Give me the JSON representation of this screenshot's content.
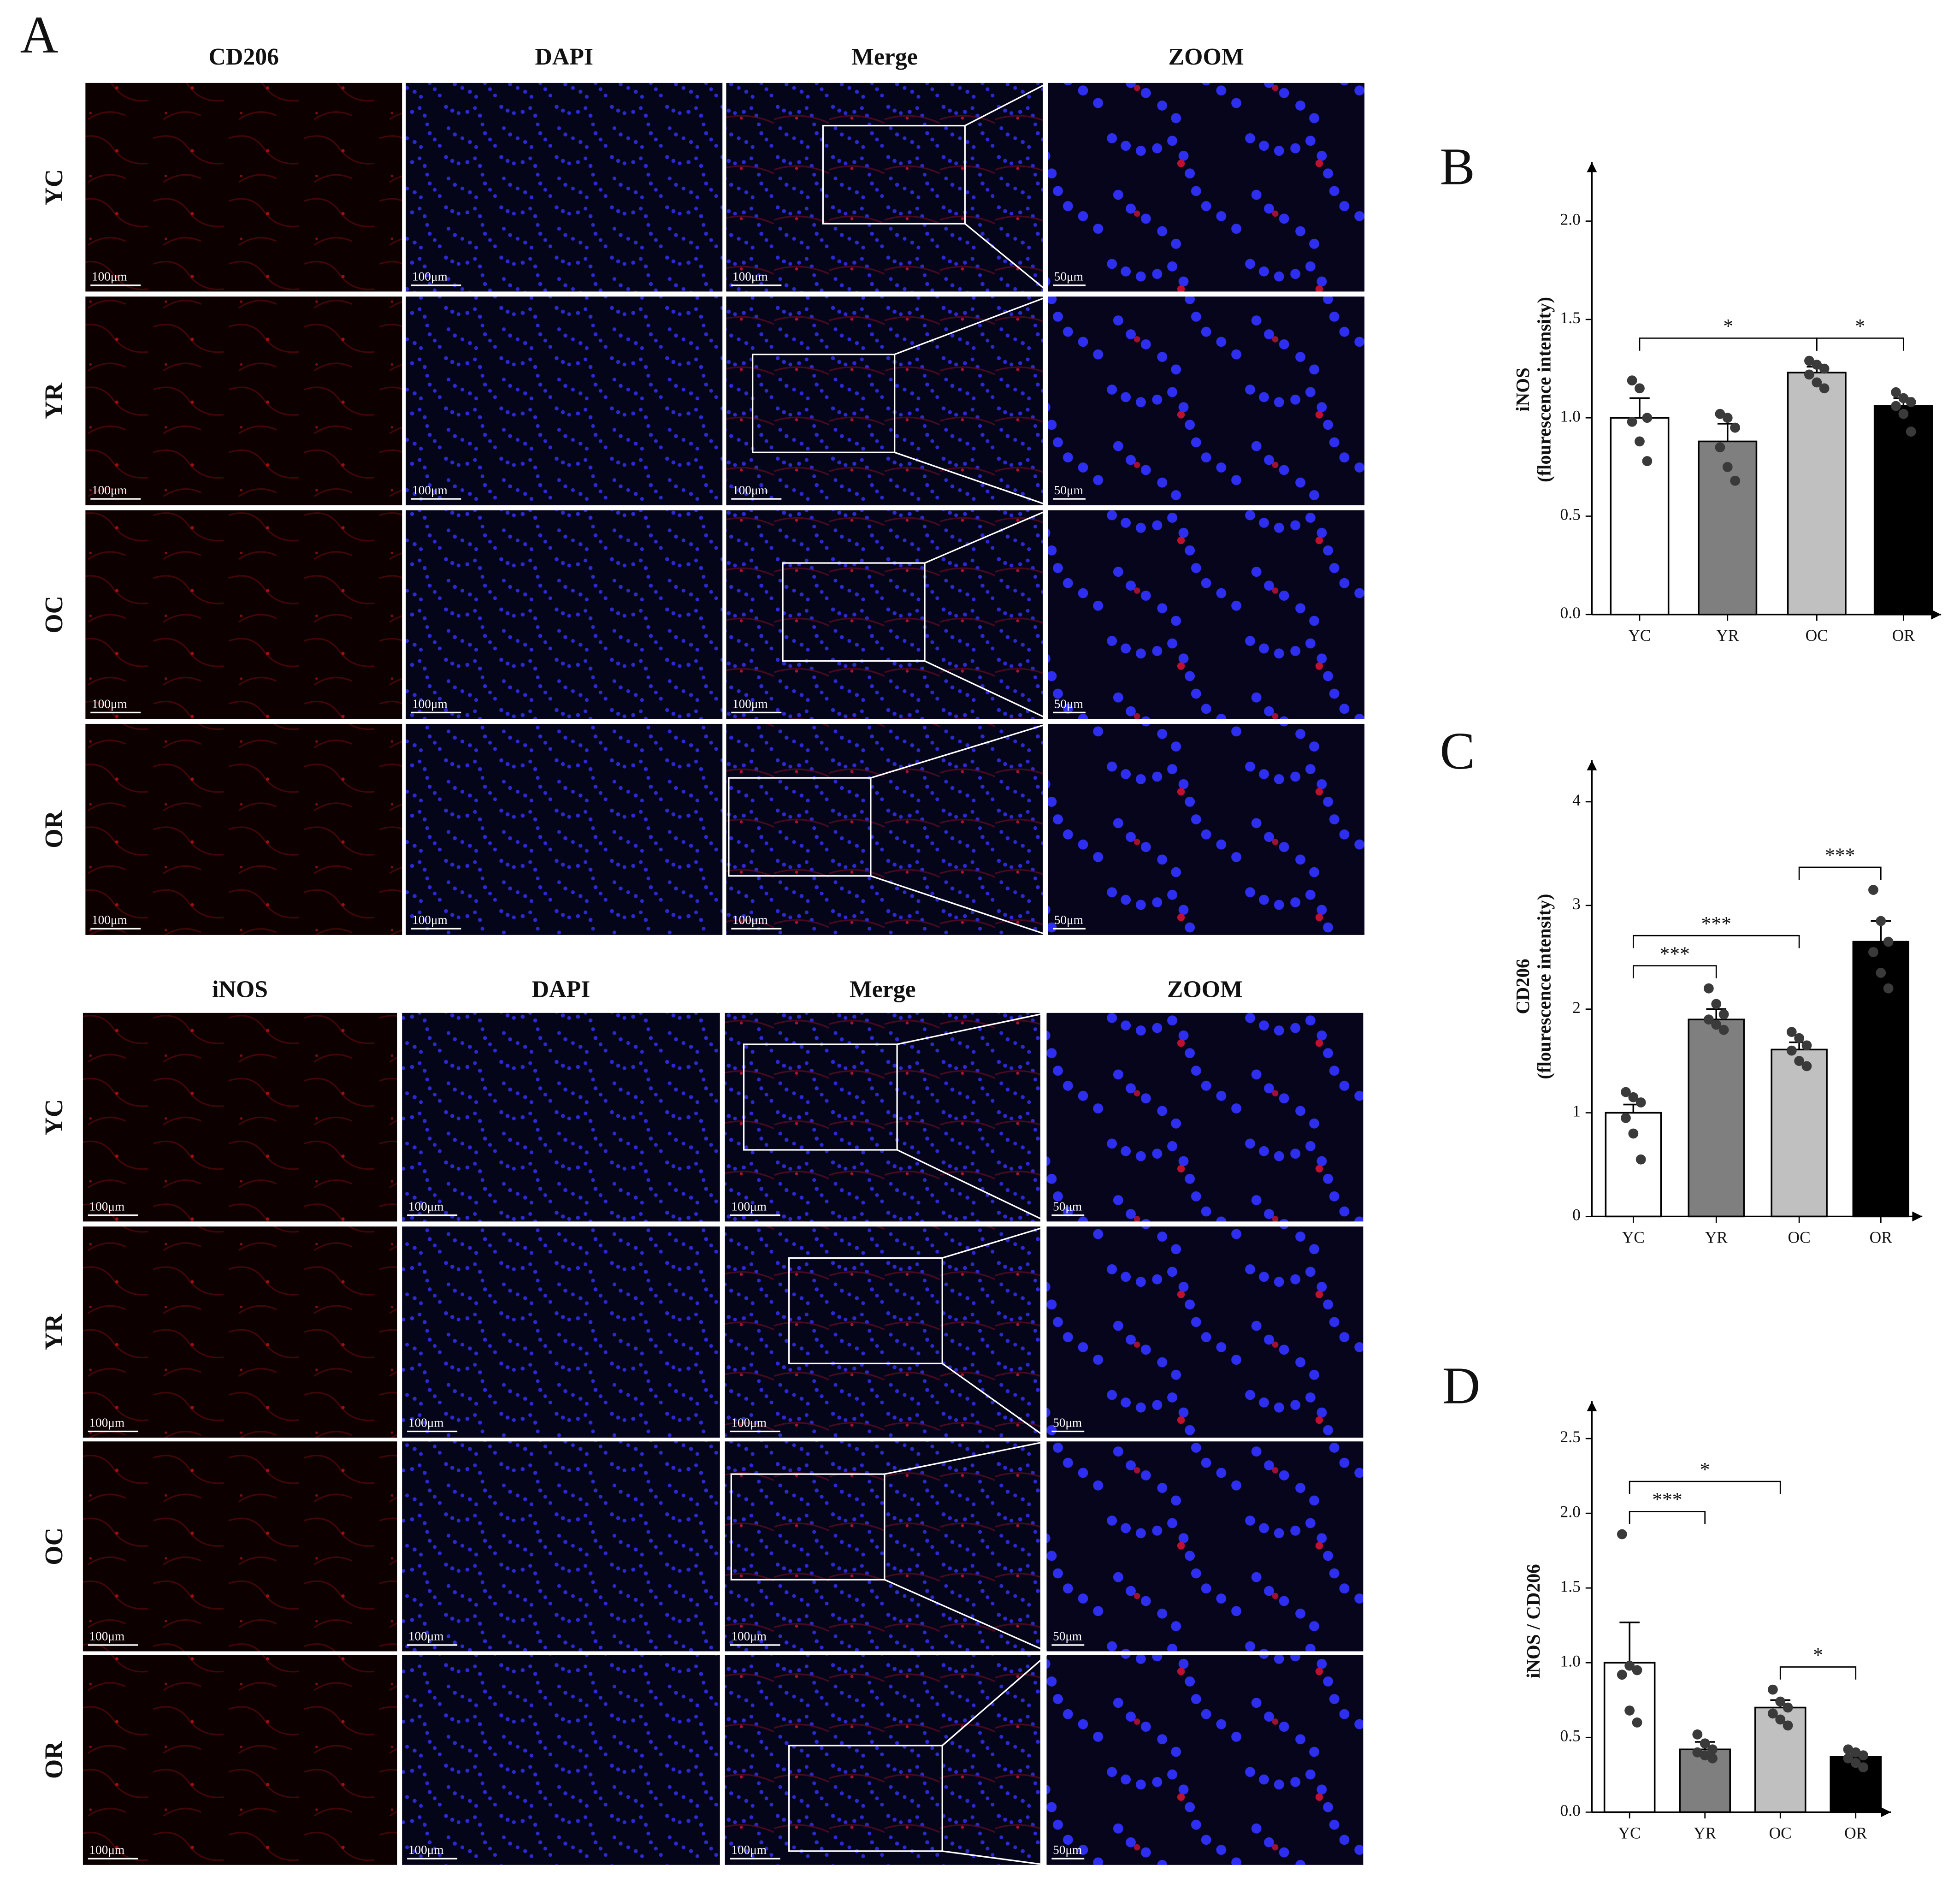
{
  "panel_a": {
    "label": "A",
    "blocks": [
      {
        "columns": [
          "CD206",
          "DAPI",
          "Merge",
          "ZOOM"
        ],
        "rows": [
          "YC",
          "YR",
          "OC",
          "OR"
        ],
        "scale_bars": [
          "100μm",
          "100μm",
          "100μm",
          "50μm"
        ]
      },
      {
        "columns": [
          "iNOS",
          "DAPI",
          "Merge",
          "ZOOM"
        ],
        "rows": [
          "YC",
          "YR",
          "OC",
          "OR"
        ],
        "scale_bars": [
          "100μm",
          "100μm",
          "100μm",
          "50μm"
        ]
      }
    ]
  },
  "chart_data": [
    {
      "type": "bar",
      "panel_label": "B",
      "ylabel": [
        "iNOS",
        "(flourescence intensity)"
      ],
      "categories": [
        "YC",
        "YR",
        "OC",
        "OR"
      ],
      "colors": [
        "#ffffff",
        "#7f7f7f",
        "#c0c0c0",
        "#000000"
      ],
      "values": [
        1.0,
        0.88,
        1.23,
        1.06
      ],
      "errors": [
        0.1,
        0.09,
        0.03,
        0.04
      ],
      "points": [
        [
          1.19,
          1.15,
          1.0,
          0.98,
          0.88,
          0.78
        ],
        [
          1.02,
          1.0,
          0.95,
          0.85,
          0.75,
          0.68
        ],
        [
          1.29,
          1.27,
          1.25,
          1.22,
          1.18,
          1.15
        ],
        [
          1.13,
          1.1,
          1.08,
          1.06,
          1.02,
          0.93
        ]
      ],
      "ylim": [
        0,
        2.3
      ],
      "yticks": [
        {
          "value": 0,
          "label": "0.0"
        },
        {
          "value": 0.5,
          "label": "0.5"
        },
        {
          "value": 1,
          "label": "1.0"
        },
        {
          "value": 1.5,
          "label": "1.5"
        },
        {
          "value": 2,
          "label": "2.0"
        }
      ],
      "annotations": [
        {
          "text": "*",
          "between": [
            "YC",
            "OC"
          ]
        },
        {
          "text": "*",
          "between": [
            "OC",
            "OR"
          ]
        }
      ]
    },
    {
      "type": "bar",
      "panel_label": "C",
      "ylabel": [
        "CD206",
        "(flourescence intensity)"
      ],
      "categories": [
        "YC",
        "YR",
        "OC",
        "OR"
      ],
      "colors": [
        "#ffffff",
        "#7f7f7f",
        "#c0c0c0",
        "#000000"
      ],
      "values": [
        1.0,
        1.9,
        1.61,
        2.65
      ],
      "errors": [
        0.08,
        0.1,
        0.07,
        0.2
      ],
      "points": [
        [
          1.2,
          1.15,
          1.1,
          0.95,
          0.8,
          0.55
        ],
        [
          2.2,
          2.05,
          1.95,
          1.9,
          1.85,
          1.8
        ],
        [
          1.78,
          1.72,
          1.65,
          1.6,
          1.5,
          1.45
        ],
        [
          3.15,
          2.85,
          2.65,
          2.55,
          2.35,
          2.2
        ]
      ],
      "ylim": [
        0,
        4.4
      ],
      "yticks": [
        0,
        1,
        2,
        3,
        4
      ],
      "annotations": [
        {
          "text": "***",
          "between": [
            "YC",
            "YR"
          ]
        },
        {
          "text": "***",
          "between": [
            "YC",
            "OC"
          ]
        },
        {
          "text": "***",
          "between": [
            "OC",
            "OR"
          ]
        }
      ]
    },
    {
      "type": "bar",
      "panel_label": "D",
      "ylabel": [
        "iNOS / CD206"
      ],
      "categories": [
        "YC",
        "YR",
        "OC",
        "OR"
      ],
      "colors": [
        "#ffffff",
        "#7f7f7f",
        "#c0c0c0",
        "#000000"
      ],
      "values": [
        1.0,
        0.42,
        0.7,
        0.37
      ],
      "errors": [
        0.27,
        0.05,
        0.05,
        0.03
      ],
      "points": [
        [
          1.86,
          0.98,
          0.95,
          0.92,
          0.68,
          0.6
        ],
        [
          0.52,
          0.46,
          0.42,
          0.4,
          0.38,
          0.36
        ],
        [
          0.82,
          0.74,
          0.7,
          0.66,
          0.62,
          0.58
        ],
        [
          0.42,
          0.4,
          0.38,
          0.36,
          0.33,
          0.3
        ]
      ],
      "ylim": [
        0,
        2.75
      ],
      "yticks": [
        {
          "value": 0,
          "label": "0.0"
        },
        {
          "value": 0.5,
          "label": "0.5"
        },
        {
          "value": 1,
          "label": "1.0"
        },
        {
          "value": 1.5,
          "label": "1.5"
        },
        {
          "value": 2,
          "label": "2.0"
        },
        {
          "value": 2.5,
          "label": "2.5"
        }
      ],
      "annotations": [
        {
          "text": "***",
          "between": [
            "YC",
            "YR"
          ]
        },
        {
          "text": "*",
          "between": [
            "YC",
            "OC"
          ]
        },
        {
          "text": "*",
          "between": [
            "OC",
            "OR"
          ]
        }
      ]
    }
  ]
}
